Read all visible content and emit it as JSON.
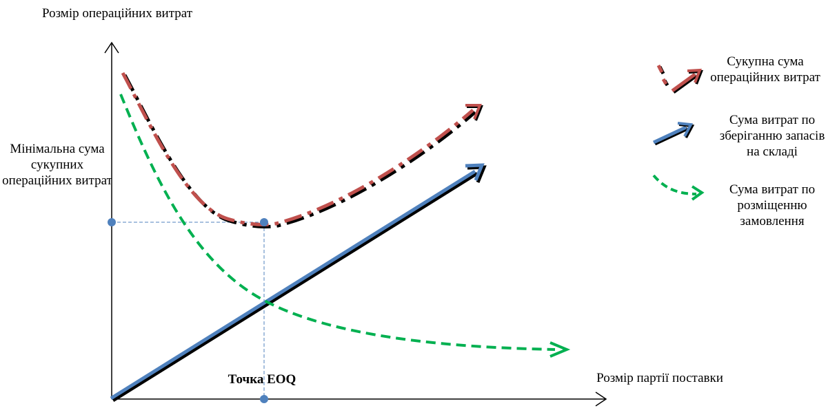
{
  "axes": {
    "y_label": "Розмір операційних витрат",
    "x_label": "Розмір партії поставки"
  },
  "annotations": {
    "min_cost": "Мінімальна сума сукупних операційних витрат",
    "eoq_point": "Точка EOQ"
  },
  "legend": {
    "total": {
      "label": "Сукупна сума операційних витрат",
      "color": "#c0504d"
    },
    "storage": {
      "label": "Сума витрат по зберіганню запасів на складі",
      "color": "#4f81bd"
    },
    "order": {
      "label": "Сума витрат по розміщенню замовлення",
      "color": "#00b050"
    }
  },
  "colors": {
    "guide": "#4f81bd",
    "point": "#4f81bd",
    "axis": "#000000"
  }
}
